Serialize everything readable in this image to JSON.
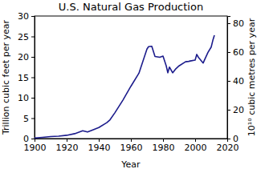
{
  "chart_data": {
    "type": "line",
    "title": "U.S. Natural Gas Production",
    "x_label": "Year",
    "y_label": "Trillion cubic feet per year",
    "y2_label": "10¹⁰ cubic metres per year",
    "x": [
      1900,
      1905,
      1910,
      1915,
      1920,
      1925,
      1930,
      1933,
      1935,
      1940,
      1945,
      1947,
      1950,
      1955,
      1960,
      1965,
      1970,
      1971,
      1973,
      1975,
      1978,
      1980,
      1982,
      1983,
      1984,
      1986,
      1988,
      1990,
      1994,
      1996,
      1997,
      2000,
      2001,
      2002,
      2005,
      2006,
      2008,
      2010,
      2011,
      2012
    ],
    "values": [
      0.13,
      0.3,
      0.5,
      0.6,
      0.8,
      1.2,
      1.9,
      1.6,
      1.9,
      2.7,
      3.9,
      4.6,
      6.3,
      9.4,
      12.8,
      16.0,
      21.9,
      22.5,
      22.6,
      20.1,
      19.9,
      20.2,
      17.8,
      16.1,
      17.5,
      16.1,
      17.1,
      17.8,
      18.8,
      18.9,
      19.0,
      19.2,
      20.6,
      19.9,
      18.5,
      19.4,
      21.1,
      22.4,
      24.0,
      25.3
    ],
    "color": "#1c1c8c",
    "xlim": [
      1900,
      2020
    ],
    "xticks": [
      1900,
      1920,
      1940,
      1960,
      1980,
      2000,
      2020
    ],
    "ylim": [
      0,
      30
    ],
    "yticks": [
      0,
      5,
      10,
      15,
      20,
      25,
      30
    ],
    "y2lim": [
      0,
      85
    ],
    "y2ticks": [
      0,
      20,
      40,
      60,
      80
    ],
    "grid": false
  }
}
